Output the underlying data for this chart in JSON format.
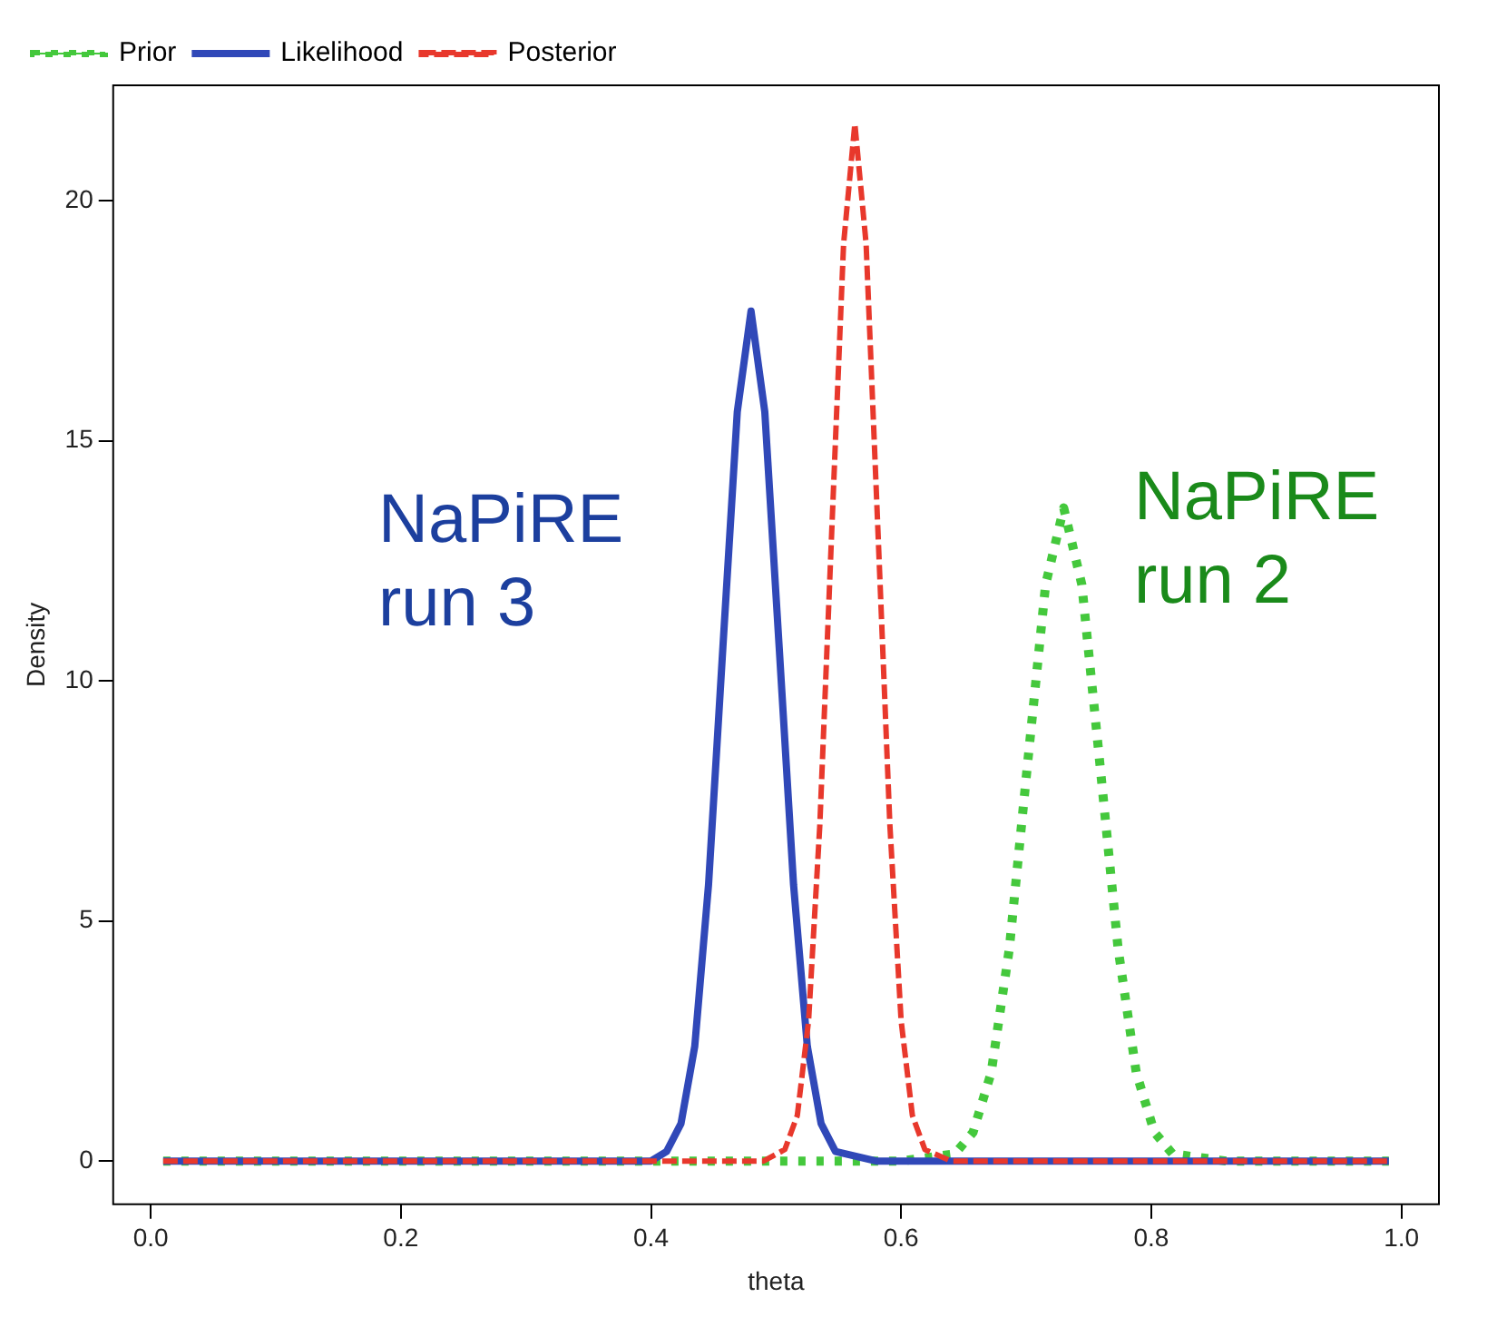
{
  "chart_data": {
    "type": "line",
    "xlabel": "theta",
    "ylabel": "Density",
    "xlim": [
      -0.03,
      1.03
    ],
    "ylim": [
      -0.9,
      22.4
    ],
    "xticks": [
      {
        "value": 0,
        "label": "0.0"
      },
      {
        "value": 0.2,
        "label": "0.2"
      },
      {
        "value": 0.4,
        "label": "0.4"
      },
      {
        "value": 0.6,
        "label": "0.6"
      },
      {
        "value": 0.8,
        "label": "0.8"
      },
      {
        "value": 1,
        "label": "1.0"
      }
    ],
    "yticks": [
      0,
      5,
      10,
      15,
      20
    ],
    "grid": false,
    "legend": "top left",
    "marker": "none",
    "series": [
      {
        "name": "Prior",
        "color": "#44c83c",
        "line_style": "dotted",
        "x": [
          0.01,
          0.6,
          0.643,
          0.6575,
          0.672,
          0.6865,
          0.701,
          0.7155,
          0.73,
          0.7445,
          0.759,
          0.7735,
          0.788,
          0.8025,
          0.817,
          0.86,
          0.99
        ],
        "values": [
          0,
          0,
          0.15,
          0.6,
          1.84,
          4.42,
          8.25,
          12.0,
          13.6,
          12.0,
          8.25,
          4.42,
          1.84,
          0.6,
          0.15,
          0,
          0
        ]
      },
      {
        "name": "Likelihood",
        "color": "#3048b8",
        "line_style": "solid",
        "x": [
          0.01,
          0.4,
          0.4125,
          0.424,
          0.435,
          0.446,
          0.4575,
          0.469,
          0.48,
          0.491,
          0.5025,
          0.514,
          0.525,
          0.536,
          0.5475,
          0.58,
          0.99
        ],
        "values": [
          0,
          0,
          0.2,
          0.78,
          2.39,
          5.75,
          10.7,
          15.6,
          17.7,
          15.6,
          10.7,
          5.75,
          2.39,
          0.78,
          0.2,
          0,
          0
        ]
      },
      {
        "name": "Posterior",
        "color": "#e8382c",
        "line_style": "dashed",
        "x": [
          0.01,
          0.49,
          0.507,
          0.517,
          0.526,
          0.535,
          0.5445,
          0.554,
          0.563,
          0.572,
          0.5815,
          0.591,
          0.6,
          0.609,
          0.619,
          0.64,
          0.99
        ],
        "values": [
          0,
          0,
          0.24,
          0.95,
          2.92,
          7.0,
          13.1,
          19.1,
          21.6,
          19.1,
          13.1,
          7.0,
          2.92,
          0.95,
          0.24,
          0,
          0
        ]
      }
    ],
    "annotations": [
      "NaPiRE\nrun 3",
      "NaPiRE\nrun 2"
    ]
  }
}
